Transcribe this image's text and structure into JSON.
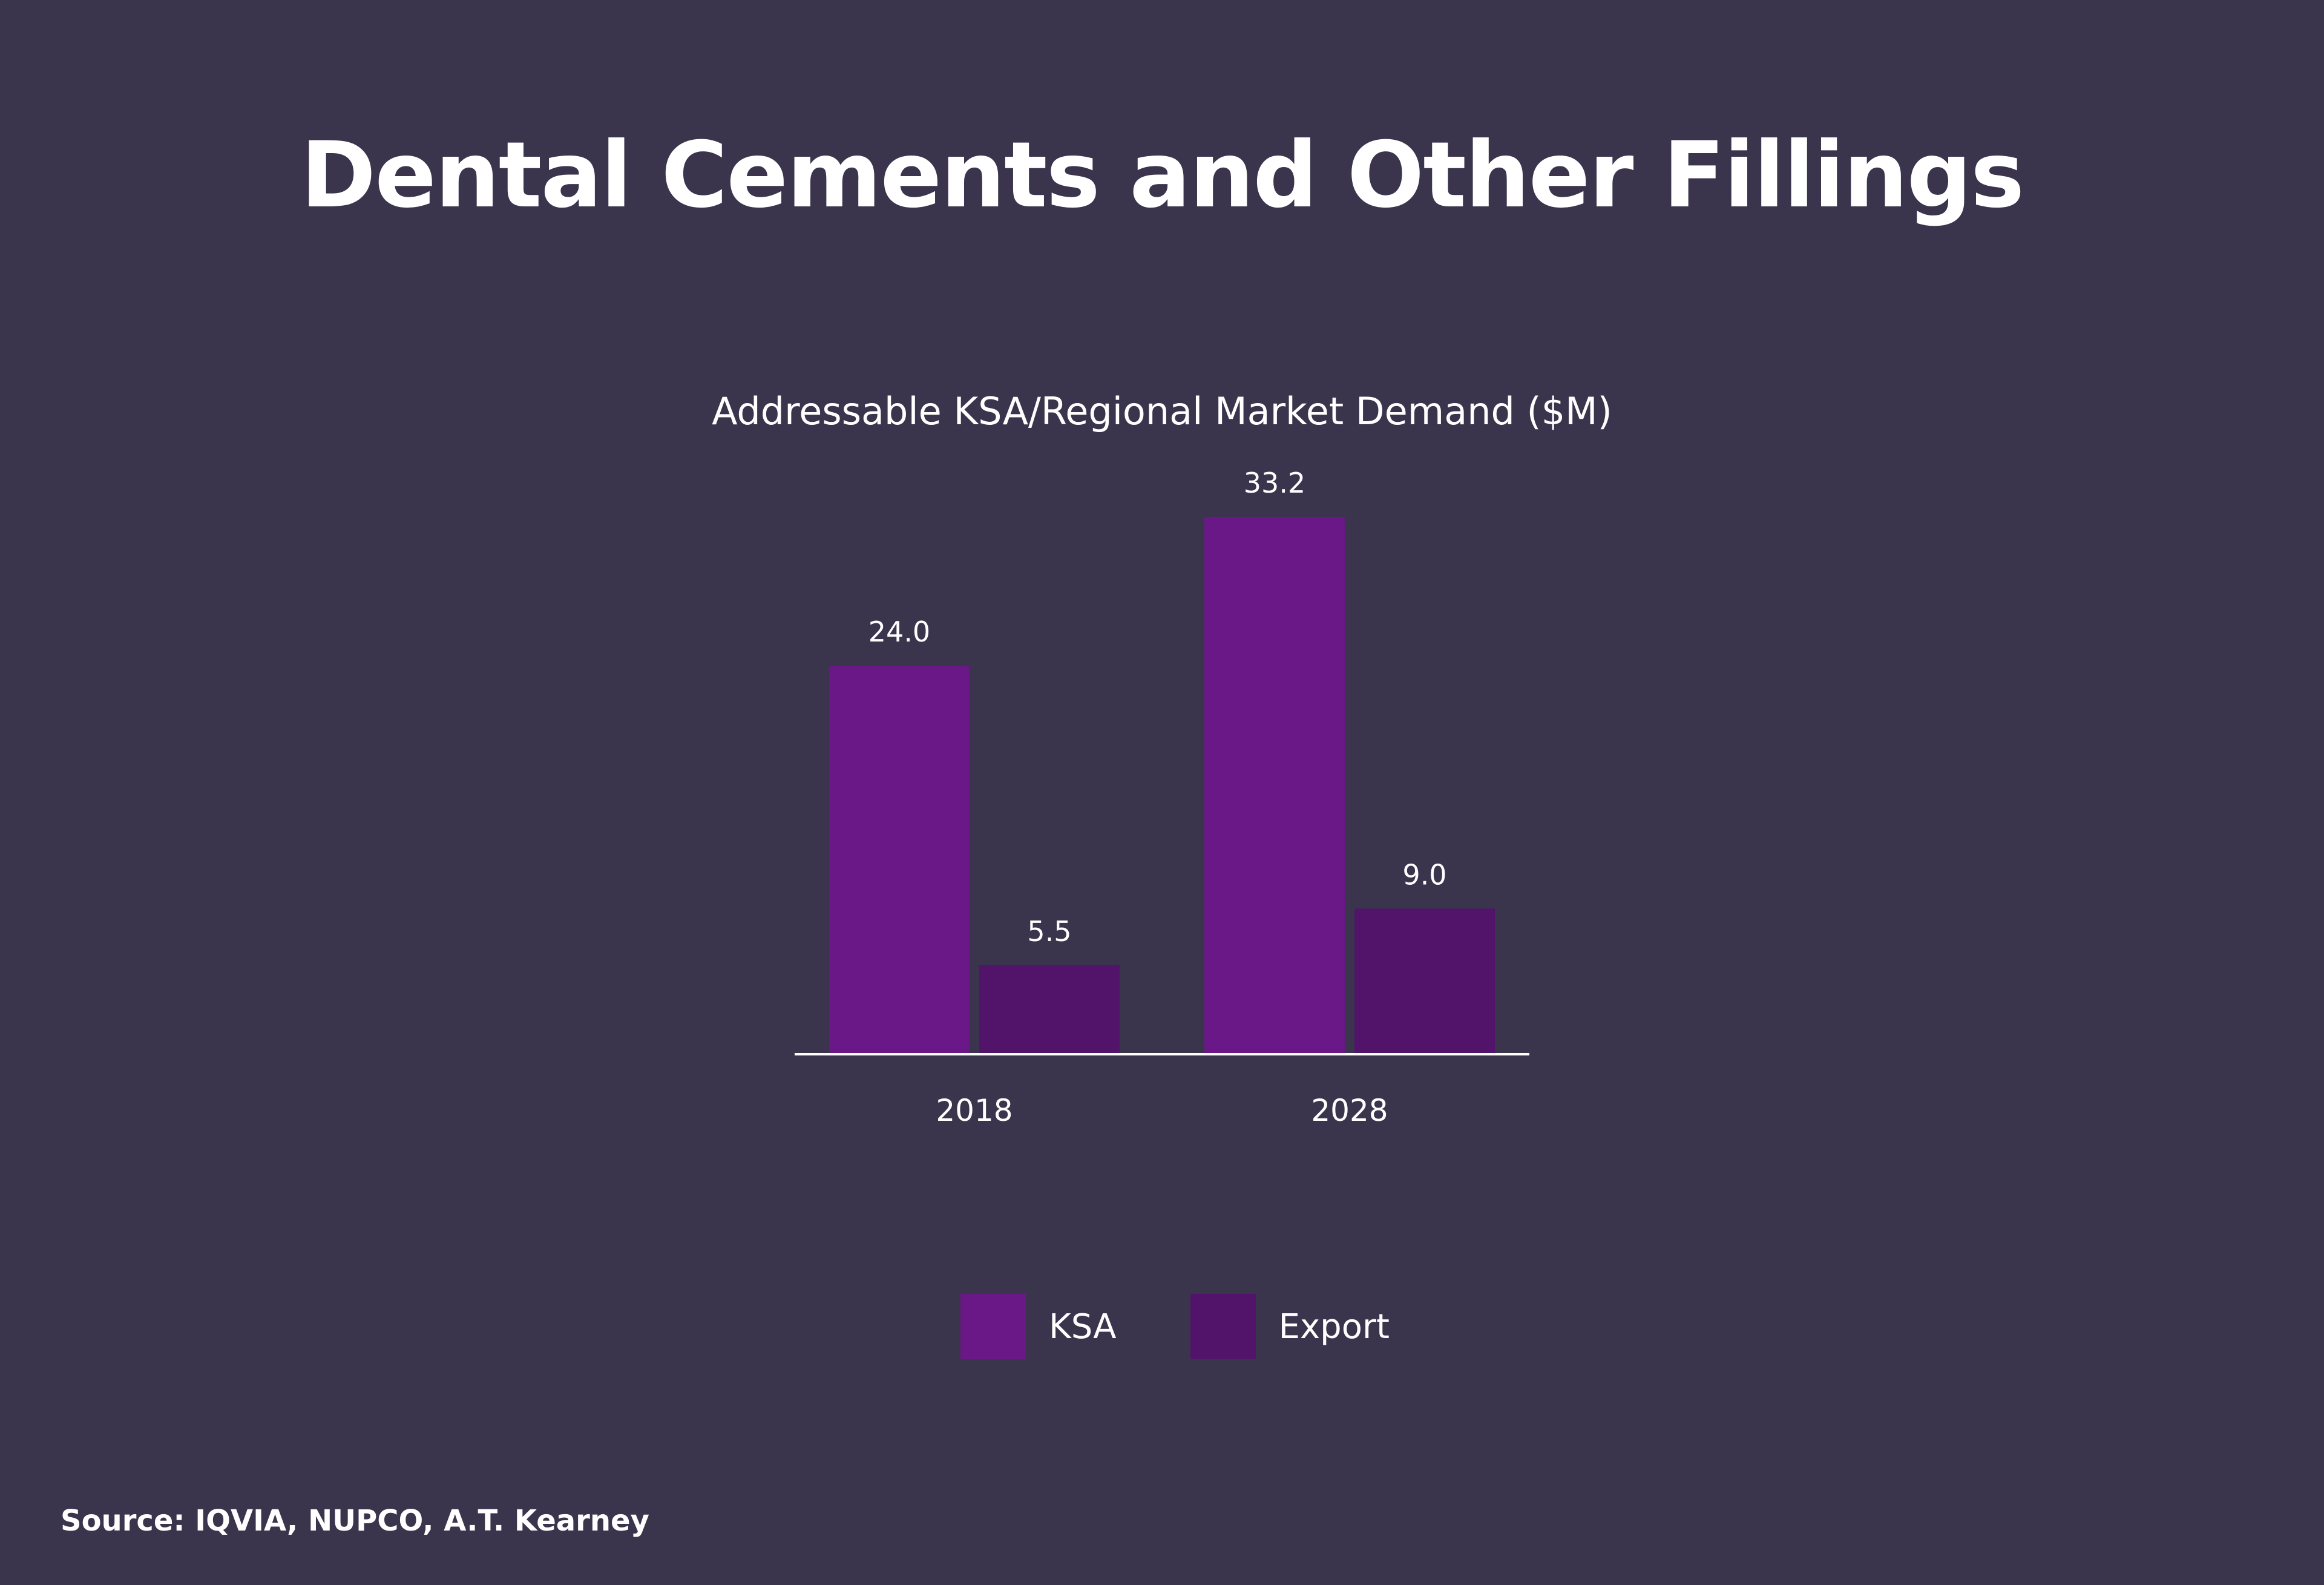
{
  "chart_data": {
    "type": "bar",
    "title": "Dental Cements and Other Fillings",
    "subtitle": "Addressable KSA/Regional Market Demand ($M)",
    "categories": [
      "2018",
      "2028"
    ],
    "series": [
      {
        "name": "KSA",
        "values": [
          24.0,
          33.2
        ],
        "labels": [
          "24.0",
          "33.2"
        ],
        "color": "#6a1787"
      },
      {
        "name": "Export",
        "values": [
          5.5,
          9.0
        ],
        "labels": [
          "5.5",
          "9.0"
        ],
        "color": "#52146b"
      }
    ],
    "xlabel": "",
    "ylabel": "",
    "ylim": [
      0,
      33.2
    ],
    "grid": false,
    "legend_position": "bottom-center"
  },
  "colors": {
    "background": "#3a344c",
    "text": "#ffffff",
    "axis": "#ffffff"
  },
  "footer": {
    "source": "Source: IQVIA, NUPCO, A.T. Kearney"
  }
}
